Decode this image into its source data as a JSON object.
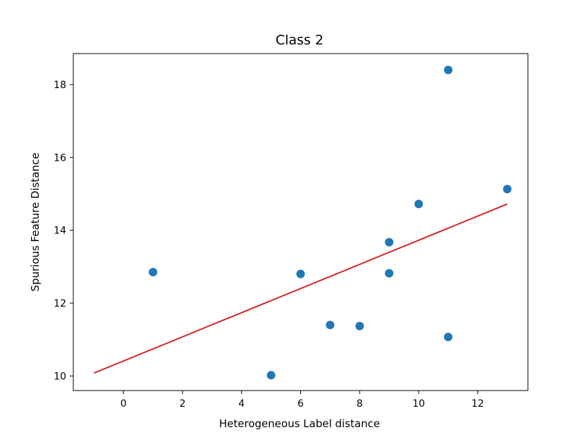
{
  "chart_data": {
    "type": "scatter",
    "title": "Class 2",
    "xlabel": "Heterogeneous Label distance",
    "ylabel": "Spurious Feature Distance",
    "xlim": [
      -1.7,
      13.7
    ],
    "ylim": [
      9.6,
      18.85
    ],
    "xticks": [
      0,
      2,
      4,
      6,
      8,
      10,
      12
    ],
    "yticks": [
      10,
      12,
      14,
      16,
      18
    ],
    "grid": false,
    "legend": "none",
    "series": [
      {
        "type": "scatter",
        "color": "#1f77b4",
        "points": [
          {
            "x": 1,
            "y": 12.85
          },
          {
            "x": 5,
            "y": 10.02
          },
          {
            "x": 6,
            "y": 12.8
          },
          {
            "x": 7,
            "y": 11.4
          },
          {
            "x": 8,
            "y": 11.37
          },
          {
            "x": 9,
            "y": 13.67
          },
          {
            "x": 9,
            "y": 12.82
          },
          {
            "x": 10,
            "y": 14.72
          },
          {
            "x": 11,
            "y": 18.4
          },
          {
            "x": 11,
            "y": 11.07
          },
          {
            "x": 13,
            "y": 15.13
          }
        ]
      },
      {
        "type": "line",
        "color": "#d62728",
        "points": [
          {
            "x": -1,
            "y": 10.08
          },
          {
            "x": 13,
            "y": 14.72
          }
        ]
      }
    ]
  }
}
